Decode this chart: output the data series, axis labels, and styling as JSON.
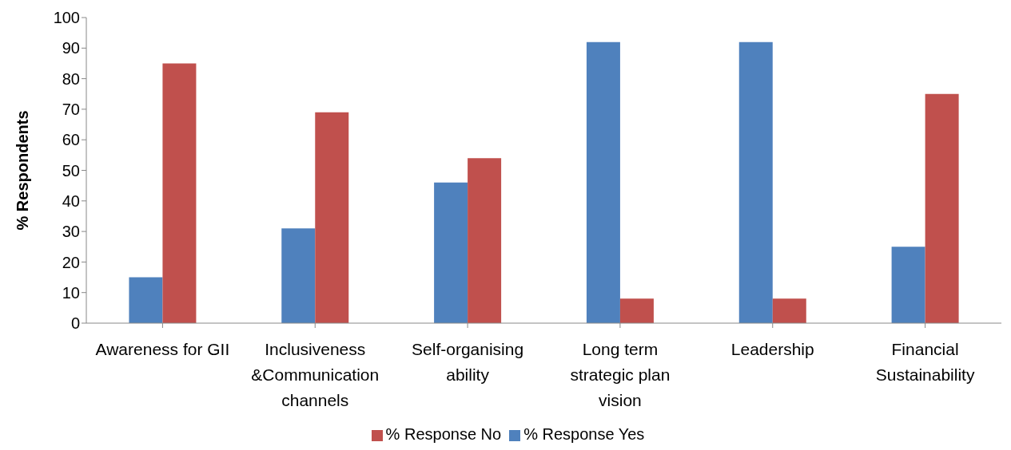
{
  "chart_data": {
    "type": "bar",
    "ylabel": "% Respondents",
    "categories": [
      "Awareness for GII",
      "Inclusiveness &Communication channels",
      "Self-organising ability",
      "Long term strategic plan vision",
      "Leadership",
      "Financial Sustainability"
    ],
    "series": [
      {
        "name": "% Response Yes",
        "color": "#4f81bd",
        "values": [
          15,
          31,
          46,
          92,
          92,
          25
        ]
      },
      {
        "name": "% Response No",
        "color": "#c0504d",
        "values": [
          85,
          69,
          54,
          8,
          8,
          75
        ]
      }
    ],
    "ylim": [
      0,
      100
    ],
    "yticks": [
      0,
      10,
      20,
      30,
      40,
      50,
      60,
      70,
      80,
      90,
      100
    ],
    "grid": false,
    "legend": "bottom"
  }
}
